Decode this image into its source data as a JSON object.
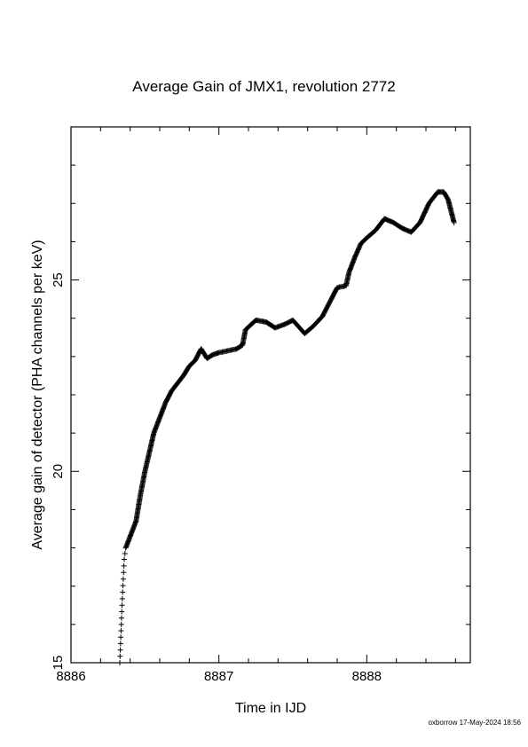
{
  "chart_data": {
    "type": "scatter",
    "title": "Average Gain of JMX1, revolution 2772",
    "xlabel": "Time in IJD",
    "ylabel": "Average gain of detector (PHA channels per keV)",
    "xlim": [
      8886,
      8888.7
    ],
    "ylim": [
      15,
      29
    ],
    "x_ticks": [
      "8886",
      "8887",
      "8888"
    ],
    "y_ticks": [
      "15",
      "20",
      "25"
    ],
    "marker": "+",
    "grid": false,
    "points": [
      [
        8886.33,
        15.0
      ],
      [
        8886.345,
        16.5
      ],
      [
        8886.36,
        17.7
      ],
      [
        8886.37,
        18.0
      ],
      [
        8886.4,
        18.3
      ],
      [
        8886.44,
        18.7
      ],
      [
        8886.47,
        19.4
      ],
      [
        8886.5,
        20.0
      ],
      [
        8886.53,
        20.5
      ],
      [
        8886.56,
        21.0
      ],
      [
        8886.6,
        21.4
      ],
      [
        8886.64,
        21.8
      ],
      [
        8886.68,
        22.1
      ],
      [
        8886.72,
        22.3
      ],
      [
        8886.76,
        22.5
      ],
      [
        8886.8,
        22.75
      ],
      [
        8886.84,
        22.9
      ],
      [
        8886.88,
        23.2
      ],
      [
        8886.92,
        22.95
      ],
      [
        8886.96,
        23.05
      ],
      [
        8887.0,
        23.1
      ],
      [
        8887.06,
        23.15
      ],
      [
        8887.12,
        23.2
      ],
      [
        8887.16,
        23.3
      ],
      [
        8887.18,
        23.7
      ],
      [
        8887.25,
        23.95
      ],
      [
        8887.32,
        23.9
      ],
      [
        8887.38,
        23.75
      ],
      [
        8887.45,
        23.85
      ],
      [
        8887.5,
        23.95
      ],
      [
        8887.58,
        23.6
      ],
      [
        8887.64,
        23.8
      ],
      [
        8887.7,
        24.05
      ],
      [
        8887.76,
        24.5
      ],
      [
        8887.8,
        24.8
      ],
      [
        8887.86,
        24.85
      ],
      [
        8887.88,
        25.2
      ],
      [
        8887.92,
        25.6
      ],
      [
        8887.96,
        25.95
      ],
      [
        8888.0,
        26.1
      ],
      [
        8888.06,
        26.3
      ],
      [
        8888.12,
        26.6
      ],
      [
        8888.18,
        26.5
      ],
      [
        8888.24,
        26.35
      ],
      [
        8888.3,
        26.25
      ],
      [
        8888.36,
        26.5
      ],
      [
        8888.42,
        27.0
      ],
      [
        8888.48,
        27.3
      ],
      [
        8888.52,
        27.3
      ],
      [
        8888.55,
        27.1
      ],
      [
        8888.57,
        26.8
      ],
      [
        8888.59,
        26.5
      ]
    ]
  },
  "footer": "oxborrow 17-May-2024 18:56"
}
